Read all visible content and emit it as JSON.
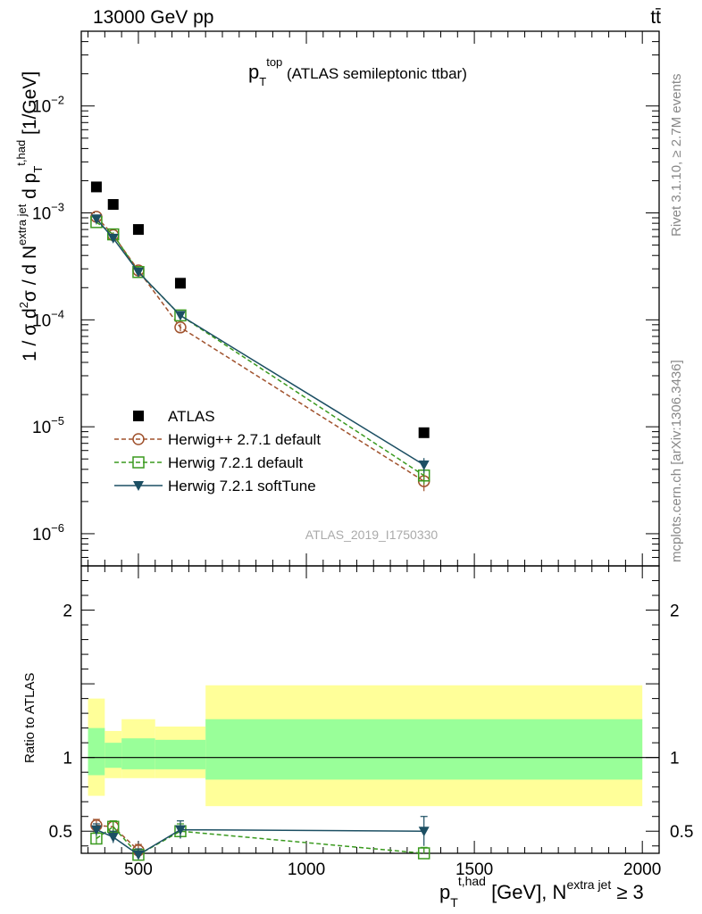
{
  "header": {
    "left_title": "13000 GeV pp",
    "right_title": "tt̄"
  },
  "plot_title": {
    "base": "p",
    "sub": "T",
    "sup": "top",
    "rest": " (ATLAS semileptonic ttbar)"
  },
  "side_labels": {
    "rivet": "Rivet 3.1.10, ≥ 2.7M events",
    "mcplots": "mcplots.cern.ch [arXiv:1306.3436]"
  },
  "analysis_id": "ATLAS_2019_I1750330",
  "y_axis_label": {
    "part1": "1 / σ d",
    "sup1": "2",
    "part2": "σ / d N",
    "sup2": "extra jet",
    "part3": " d p",
    "sub3": "T",
    "sup3": "t,had",
    "part4": " [1/GeV]"
  },
  "x_axis_label": {
    "base": "p",
    "sub": "T",
    "sup": "t,had",
    "mid": " [GeV], N",
    "sup2": "extra jet",
    "tail": " ≥ 3"
  },
  "ratio_label": "Ratio to ATLAS",
  "chart_data": {
    "type": "scatter",
    "main": {
      "yscale": "log",
      "ylim": [
        5e-07,
        0.05
      ],
      "y_tick_labels": [
        {
          "value": 1e-06,
          "mant": "10",
          "exp": "−6"
        },
        {
          "value": 1e-05,
          "mant": "10",
          "exp": "−5"
        },
        {
          "value": 0.0001,
          "mant": "10",
          "exp": "−4"
        },
        {
          "value": 0.001,
          "mant": "10",
          "exp": "−3"
        },
        {
          "value": 0.01,
          "mant": "10",
          "exp": "−2"
        }
      ]
    },
    "xlim": [
      330,
      2050
    ],
    "x_ticks": [
      500,
      1000,
      1500,
      2000
    ],
    "x_tick_labels": [
      "500",
      "1000",
      "1500",
      "2000"
    ],
    "bins": [
      [
        350,
        400
      ],
      [
        400,
        450
      ],
      [
        450,
        550
      ],
      [
        550,
        700
      ],
      [
        700,
        2000
      ]
    ],
    "x_centers": [
      375,
      425,
      500,
      625,
      1350
    ],
    "series": [
      {
        "name": "ATLAS",
        "color": "#000000",
        "marker": "square-filled",
        "values": [
          0.00175,
          0.0012,
          0.0007,
          0.00022,
          8.8e-06
        ],
        "ratio_bands": {
          "inner": [
            [
              0.88,
              1.2
            ],
            [
              0.93,
              1.1
            ],
            [
              0.92,
              1.13
            ],
            [
              0.92,
              1.12
            ],
            [
              0.85,
              1.26
            ]
          ],
          "outer": [
            [
              0.74,
              1.4
            ],
            [
              0.86,
              1.18
            ],
            [
              0.86,
              1.26
            ],
            [
              0.86,
              1.21
            ],
            [
              0.67,
              1.49
            ]
          ]
        }
      },
      {
        "name": "Herwig++ 2.7.1 default",
        "color": "#a0522d",
        "marker": "circle-open",
        "line": "dashed",
        "values": [
          0.00092,
          0.00062,
          0.00029,
          8.5e-05,
          3.1e-06
        ],
        "errors": [
          4e-05,
          3e-05,
          2e-05,
          7e-06,
          6e-07
        ],
        "ratio": [
          0.54,
          0.53,
          0.37,
          null,
          null
        ],
        "ratio_err": [
          0.04,
          0.04,
          0.04,
          null,
          null
        ]
      },
      {
        "name": "Herwig 7.2.1 default",
        "color": "#3a9a1e",
        "marker": "square-open",
        "line": "dashed",
        "values": [
          0.00082,
          0.00063,
          0.00028,
          0.00011,
          3.5e-06
        ],
        "errors": [
          4e-05,
          3e-05,
          2e-05,
          8e-06,
          6e-07
        ],
        "ratio": [
          0.45,
          0.53,
          0.34,
          0.5,
          0.35
        ],
        "ratio_err": [
          0.04,
          0.04,
          0.04,
          0.05,
          0.04
        ]
      },
      {
        "name": "Herwig 7.2.1 softTune",
        "color": "#1c4f63",
        "marker": "triangle-down-filled",
        "line": "solid",
        "values": [
          0.00088,
          0.00058,
          0.00028,
          0.00011,
          4.4e-06
        ],
        "errors": [
          4e-05,
          3e-05,
          2e-05,
          8e-06,
          7e-07
        ],
        "ratio": [
          0.51,
          0.46,
          0.34,
          0.51,
          0.5
        ],
        "ratio_err": [
          0.04,
          0.04,
          0.04,
          0.06,
          0.1
        ]
      }
    ],
    "ratio": {
      "ylim": [
        0.35,
        2.3
      ],
      "y_ticks": [
        0.5,
        1,
        2
      ],
      "y_tick_labels": [
        "0.5",
        "1",
        "2"
      ]
    },
    "colors": {
      "band_inner": "#99ff99",
      "band_outer": "#ffff99"
    },
    "legend_position": "lower-left"
  }
}
